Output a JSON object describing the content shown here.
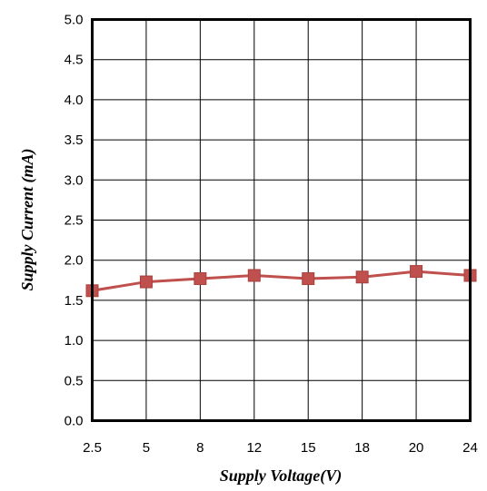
{
  "chart_data": {
    "type": "line",
    "title": "",
    "xlabel": "Supply Voltage(V)",
    "ylabel": "Supply Current (mA)",
    "categories": [
      "2.5",
      "5",
      "8",
      "12",
      "15",
      "18",
      "20",
      "24"
    ],
    "y_ticks": [
      "0.0",
      "0.5",
      "1.0",
      "1.5",
      "2.0",
      "2.5",
      "3.0",
      "3.5",
      "4.0",
      "4.5",
      "5.0"
    ],
    "ylim": [
      0,
      5
    ],
    "grid": true,
    "legend": "none",
    "series": [
      {
        "values": [
          1.62,
          1.73,
          1.77,
          1.81,
          1.77,
          1.79,
          1.86,
          1.81
        ],
        "color": "#c0504d",
        "marker": "square"
      }
    ]
  }
}
